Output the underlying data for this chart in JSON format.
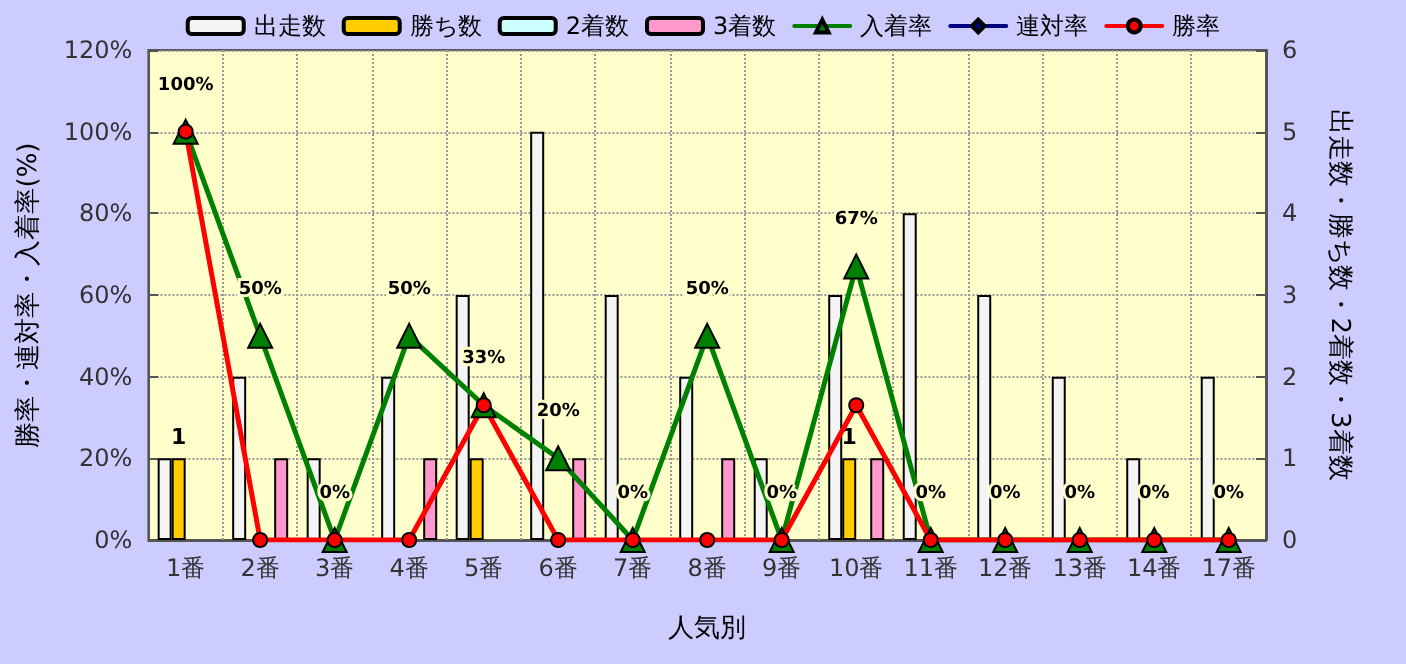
{
  "chart_data": {
    "type": "bar",
    "xlabel": "人気別",
    "ylabel": "勝率・連対率・入着率(%)",
    "y2label": "出走数・勝ち数・2着数・3着数",
    "categories": [
      "1番",
      "2番",
      "3番",
      "4番",
      "5番",
      "6番",
      "7番",
      "8番",
      "9番",
      "10番",
      "11番",
      "12番",
      "13番",
      "14番",
      "17番"
    ],
    "series": [
      {
        "name": "出走数",
        "axis": "y2",
        "color": "#f4f4f4",
        "values": [
          1,
          2,
          1,
          2,
          3,
          5,
          3,
          2,
          1,
          3,
          4,
          3,
          2,
          1,
          2
        ]
      },
      {
        "name": "勝ち数",
        "axis": "y2",
        "color": "#ffcc00",
        "values": [
          1,
          0,
          0,
          0,
          1,
          0,
          0,
          0,
          0,
          1,
          0,
          0,
          0,
          0,
          0
        ],
        "value_labels": [
          "1",
          null,
          null,
          null,
          null,
          null,
          null,
          null,
          null,
          "1",
          null,
          null,
          null,
          null,
          null
        ]
      },
      {
        "name": "2着数",
        "axis": "y2",
        "color": "#ccffff",
        "values": [
          0,
          0,
          0,
          0,
          0,
          0,
          0,
          0,
          0,
          0,
          0,
          0,
          0,
          0,
          0
        ]
      },
      {
        "name": "3着数",
        "axis": "y2",
        "color": "#ff99cc",
        "values": [
          0,
          1,
          0,
          1,
          0,
          1,
          0,
          1,
          0,
          1,
          0,
          0,
          0,
          0,
          0
        ]
      },
      {
        "name": "入着率",
        "type": "line",
        "axis": "y",
        "color": "#008000",
        "marker": "triangle",
        "values": [
          100,
          50,
          0,
          50,
          33,
          20,
          0,
          50,
          0,
          67,
          0,
          0,
          0,
          0,
          0
        ],
        "value_labels": [
          "100%",
          "50%",
          "0%",
          "50%",
          "33%",
          "20%",
          "0%",
          "50%",
          "0%",
          "67%",
          "0%",
          "0%",
          "0%",
          "0%",
          "0%"
        ]
      },
      {
        "name": "連対率",
        "type": "line",
        "axis": "y",
        "color": "#000080",
        "marker": "diamond",
        "values": [
          null,
          null,
          null,
          null,
          null,
          null,
          null,
          null,
          null,
          null,
          null,
          null,
          null,
          null,
          null
        ]
      },
      {
        "name": "勝率",
        "type": "line",
        "axis": "y",
        "color": "#ff0000",
        "marker": "circle",
        "values": [
          100,
          0,
          0,
          0,
          33,
          0,
          0,
          0,
          0,
          33,
          0,
          0,
          0,
          0,
          0
        ]
      }
    ],
    "ylim": [
      0,
      120
    ],
    "yticks": [
      {
        "value": 0,
        "label": "0%"
      },
      {
        "value": 20,
        "label": "20%"
      },
      {
        "value": 40,
        "label": "40%"
      },
      {
        "value": 60,
        "label": "60%"
      },
      {
        "value": 80,
        "label": "80%"
      },
      {
        "value": 100,
        "label": "100%"
      },
      {
        "value": 120,
        "label": "120%"
      }
    ],
    "y2lim": [
      0,
      6
    ],
    "y2ticks": [
      0,
      1,
      2,
      3,
      4,
      5,
      6
    ],
    "grid": true,
    "legend": "top"
  }
}
